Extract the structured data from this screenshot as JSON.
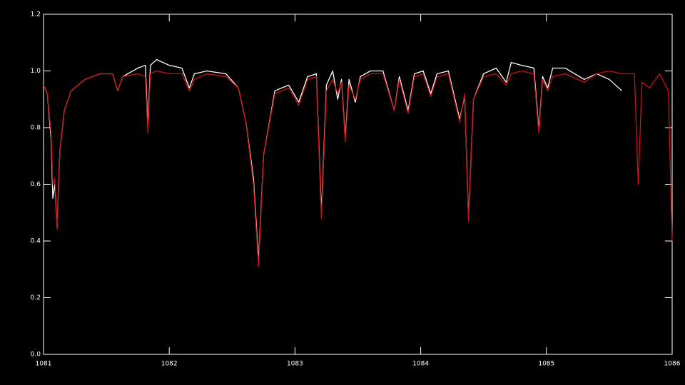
{
  "chart_data": {
    "type": "line",
    "x": [
      1081.0,
      1081.03,
      1081.06,
      1081.074,
      1081.09,
      1081.108,
      1081.13,
      1081.165,
      1081.22,
      1081.33,
      1081.45,
      1081.55,
      1081.59,
      1081.63,
      1081.75,
      1081.81,
      1081.83,
      1081.85,
      1081.9,
      1082.0,
      1082.1,
      1082.16,
      1082.2,
      1082.3,
      1082.45,
      1082.55,
      1082.61,
      1082.67,
      1082.71,
      1082.75,
      1082.84,
      1082.95,
      1083.03,
      1083.1,
      1083.17,
      1083.21,
      1083.25,
      1083.3,
      1083.34,
      1083.37,
      1083.4,
      1083.43,
      1083.48,
      1083.52,
      1083.6,
      1083.7,
      1083.79,
      1083.83,
      1083.9,
      1083.95,
      1084.02,
      1084.08,
      1084.13,
      1084.22,
      1084.31,
      1084.35,
      1084.38,
      1084.42,
      1084.5,
      1084.6,
      1084.68,
      1084.72,
      1084.8,
      1084.9,
      1084.94,
      1084.97,
      1085.01,
      1085.05,
      1085.15,
      1085.3,
      1085.4,
      1085.5,
      1085.6,
      1085.7,
      1085.73,
      1085.76,
      1085.82,
      1085.9,
      1085.97,
      1086.0
    ],
    "series": [
      {
        "color": "#ffffff",
        "values": [
          0.95,
          0.92,
          0.76,
          0.55,
          0.6,
          0.45,
          0.72,
          0.86,
          0.93,
          0.97,
          0.99,
          0.99,
          0.93,
          0.98,
          1.01,
          1.02,
          0.8,
          1.02,
          1.04,
          1.02,
          1.01,
          0.94,
          0.99,
          1.0,
          0.99,
          0.94,
          0.82,
          0.62,
          0.33,
          0.7,
          0.93,
          0.95,
          0.89,
          0.98,
          0.99,
          0.5,
          0.95,
          1.0,
          0.9,
          0.97,
          0.76,
          0.97,
          0.89,
          0.98,
          1.0,
          1.0,
          0.86,
          0.98,
          0.86,
          0.99,
          1.0,
          0.92,
          0.99,
          1.0,
          0.83,
          0.91,
          0.48,
          0.9,
          0.99,
          1.01,
          0.96,
          1.03,
          1.02,
          1.01,
          0.79,
          0.98,
          0.94,
          1.01,
          1.01,
          0.97,
          0.99,
          0.97,
          0.93,
          null,
          null,
          null,
          null,
          null,
          null,
          null
        ]
      },
      {
        "color": "#d01010",
        "values": [
          0.95,
          0.92,
          0.78,
          0.6,
          0.62,
          0.44,
          0.72,
          0.86,
          0.93,
          0.97,
          0.99,
          0.99,
          0.93,
          0.98,
          0.99,
          0.98,
          0.78,
          0.99,
          1.0,
          0.99,
          0.99,
          0.93,
          0.97,
          0.99,
          0.98,
          0.94,
          0.82,
          0.6,
          0.31,
          0.7,
          0.92,
          0.94,
          0.88,
          0.97,
          0.98,
          0.48,
          0.93,
          0.97,
          0.92,
          0.96,
          0.75,
          0.95,
          0.9,
          0.97,
          0.99,
          0.99,
          0.86,
          0.97,
          0.85,
          0.98,
          0.99,
          0.91,
          0.98,
          0.99,
          0.82,
          0.92,
          0.47,
          0.9,
          0.98,
          0.99,
          0.95,
          0.99,
          1.0,
          0.99,
          0.78,
          0.97,
          0.93,
          0.98,
          0.99,
          0.96,
          0.99,
          1.0,
          0.99,
          0.99,
          0.6,
          0.96,
          0.94,
          0.99,
          0.93,
          0.4
        ]
      }
    ],
    "xlim": [
      1081,
      1086
    ],
    "xticks": [
      1081,
      1082,
      1083,
      1084,
      1085,
      1086
    ],
    "ylim": [
      0,
      1.2
    ],
    "yticks": [
      {
        "value": 0,
        "label": "0.0"
      },
      0.2,
      0.4,
      0.6,
      0.8,
      {
        "value": 1,
        "label": "1.0"
      },
      1.2
    ]
  }
}
